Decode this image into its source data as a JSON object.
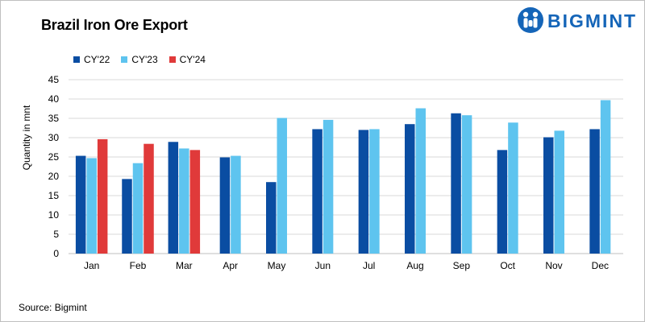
{
  "title": "Brazil Iron Ore Export",
  "logo": {
    "text": "BIGMINT",
    "color": "#1565b8"
  },
  "source": "Source: Bigmint",
  "colors": {
    "cy22": "#0a4da2",
    "cy23": "#5ec4ef",
    "cy24": "#e03a3a",
    "grid": "#d9d9d9",
    "axis": "#bfbfbf"
  },
  "chart_data": {
    "type": "bar",
    "title": "Brazil Iron Ore Export",
    "xlabel": "",
    "ylabel": "Quantity in mnt",
    "ylim": [
      0,
      45
    ],
    "yticks": [
      0,
      5,
      10,
      15,
      20,
      25,
      30,
      35,
      40,
      45
    ],
    "grid": true,
    "legend_position": "top-left",
    "categories": [
      "Jan",
      "Feb",
      "Mar",
      "Apr",
      "May",
      "Jun",
      "Jul",
      "Aug",
      "Sep",
      "Oct",
      "Nov",
      "Dec"
    ],
    "series": [
      {
        "name": "CY'22",
        "color": "#0a4da2",
        "values": [
          25.3,
          19.3,
          28.9,
          24.9,
          18.5,
          32.2,
          32.0,
          33.5,
          36.3,
          26.8,
          30.1,
          32.2
        ]
      },
      {
        "name": "CY'23",
        "color": "#5ec4ef",
        "values": [
          24.7,
          23.4,
          27.2,
          25.3,
          35.1,
          34.6,
          32.2,
          37.6,
          35.8,
          33.9,
          31.8,
          39.7
        ]
      },
      {
        "name": "CY'24",
        "color": "#e03a3a",
        "values": [
          29.6,
          28.4,
          26.8,
          null,
          null,
          null,
          null,
          null,
          null,
          null,
          null,
          null
        ]
      }
    ]
  }
}
